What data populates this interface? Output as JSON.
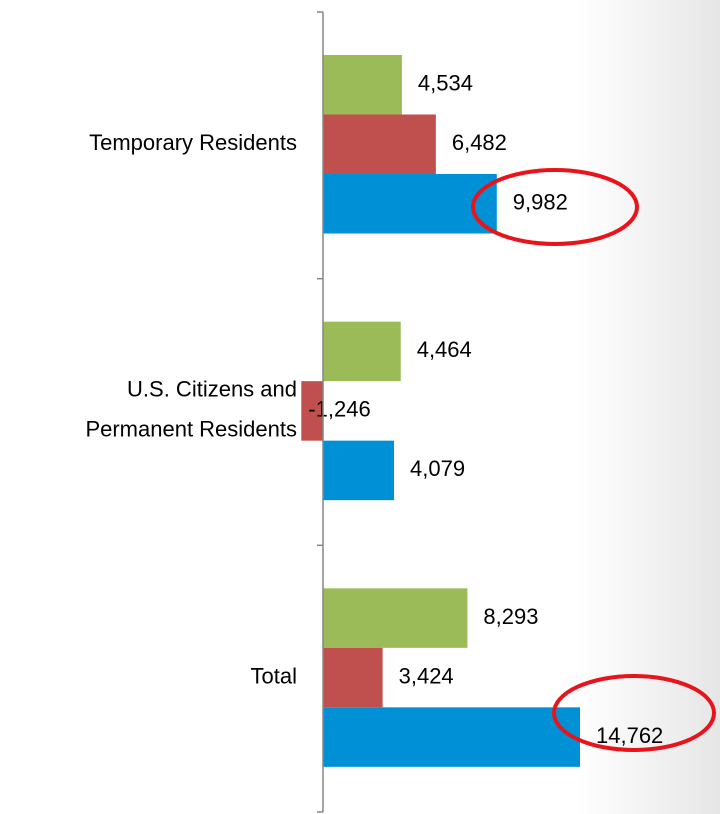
{
  "chart_data": {
    "type": "bar",
    "orientation": "horizontal",
    "categories": [
      [
        "Temporary Residents"
      ],
      [
        "U.S. Citizens and",
        "Permanent Residents"
      ],
      [
        "Total"
      ]
    ],
    "series": [
      {
        "color": "#9bbb59",
        "values": [
          4534,
          4464,
          8293
        ],
        "value_labels": [
          "4,534",
          "4,464",
          "8,293"
        ]
      },
      {
        "color": "#c0504d",
        "values": [
          6482,
          -1246,
          3424
        ],
        "value_labels": [
          "6,482",
          "-1,246",
          "3,424"
        ]
      },
      {
        "color": "#0090d6",
        "values": [
          9982,
          4079,
          14762
        ],
        "value_labels": [
          "9,982",
          "4,079",
          "14,762"
        ]
      }
    ]
  }
}
